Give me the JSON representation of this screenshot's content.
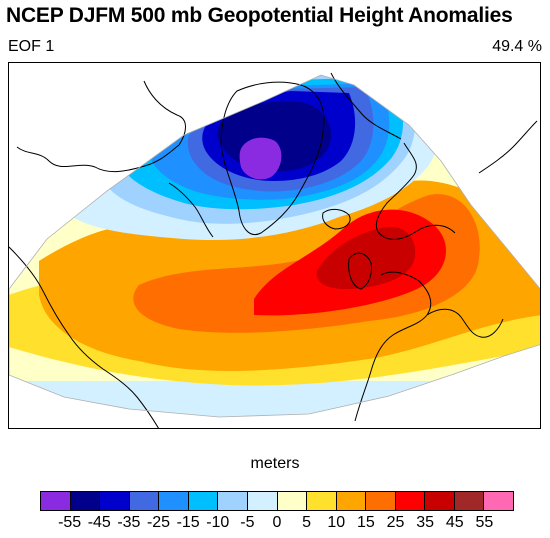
{
  "figure": {
    "title": "NCEP DJFM 500 mb Geopotential Height Anomalies",
    "left_subtitle": "EOF 1",
    "right_subtitle": "49.4 %",
    "units_label": "meters"
  },
  "colorbar": {
    "colors": [
      "#8a2be2",
      "#00008b",
      "#0000cd",
      "#4169e1",
      "#1e90ff",
      "#00bfff",
      "#a0d2ff",
      "#d2f0ff",
      "#ffffc8",
      "#ffe12d",
      "#ffa500",
      "#ff6e00",
      "#ff0000",
      "#c80000",
      "#a02828",
      "#ff69b4"
    ],
    "tick_labels": [
      "-55",
      "-45",
      "-35",
      "-25",
      "-15",
      "-10",
      "-5",
      "0",
      "5",
      "10",
      "15",
      "25",
      "35",
      "45",
      "55"
    ]
  },
  "map": {
    "projection": "lambert-conic",
    "region": "North Atlantic / Arctic",
    "pattern": "NAO dipole: negative center near Greenland/Arctic, positive center over Western Europe"
  }
}
